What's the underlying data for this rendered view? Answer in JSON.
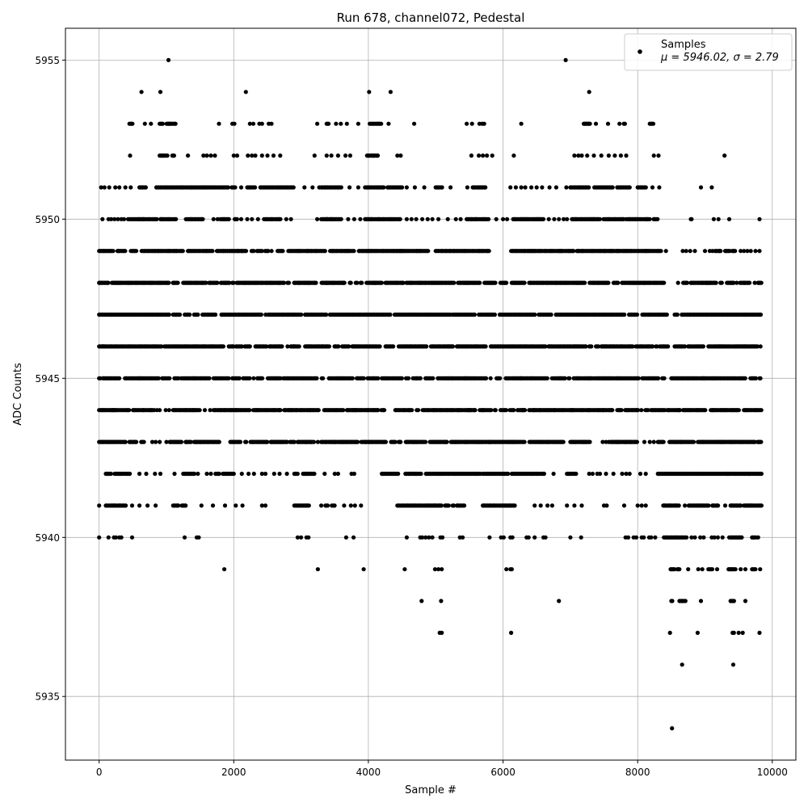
{
  "chart_data": {
    "type": "scatter",
    "title": "Run 678, channel072, Pedestal",
    "xlabel": "Sample #",
    "ylabel": "ADC Counts",
    "xlim": [
      -500,
      10350
    ],
    "ylim": [
      5933,
      5956
    ],
    "x_ticks": [
      0,
      2000,
      4000,
      6000,
      8000,
      10000
    ],
    "y_ticks": [
      5935,
      5940,
      5945,
      5950,
      5955
    ],
    "grid": true,
    "legend": {
      "placement": "top-right",
      "entries": [
        {
          "label": "Samples",
          "stats": "μ = 5946.02, σ = 2.79",
          "color": "#000000"
        }
      ]
    },
    "series": [
      {
        "name": "Samples",
        "color": "#000000",
        "x_range": [
          0,
          9840
        ],
        "levels": [
          {
            "y": 5934,
            "ranges": [],
            "points": [
              8510
            ]
          },
          {
            "y": 5936,
            "ranges": [],
            "points": [
              8660,
              9420
            ]
          },
          {
            "y": 5937,
            "ranges": [],
            "points": [
              5060,
              5090,
              6120,
              8480,
              8890,
              9410,
              9430,
              9500,
              9560,
              9810
            ]
          },
          {
            "y": 5938,
            "ranges": [
              [
                8500,
                8530
              ],
              [
                8620,
                8720
              ],
              [
                9380,
                9450
              ]
            ],
            "points": [
              4790,
              5080,
              6830,
              8940,
              9600
            ]
          },
          {
            "y": 5939,
            "ranges": [
              [
                8490,
                8640
              ],
              [
                9050,
                9120
              ],
              [
                9350,
                9460
              ],
              [
                9700,
                9760
              ]
            ],
            "points": [
              1860,
              3250,
              3930,
              4540,
              4990,
              5040,
              5090,
              6050,
              6110,
              6130,
              8750,
              8900,
              8960,
              9180,
              9530,
              9600,
              9820
            ]
          },
          {
            "y": 5940,
            "ranges": [
              [
                8390,
                8730
              ],
              [
                9360,
                9590
              ],
              [
                9700,
                9760
              ]
            ],
            "points": [
              0,
              140,
              220,
              250,
              300,
              330,
              490,
              1270,
              1450,
              1480,
              2950,
              3000,
              3080,
              3110,
              3670,
              3780,
              4570,
              4770,
              4800,
              4850,
              4900,
              4950,
              5070,
              5100,
              5360,
              5400,
              5800,
              5970,
              6010,
              6110,
              6140,
              6350,
              6380,
              6470,
              6600,
              6630,
              7000,
              7160,
              7820,
              7860,
              7940,
              7980,
              8060,
              8090,
              8170,
              8200,
              8260,
              8800,
              8850,
              8930,
              8980,
              9100,
              9140,
              9190,
              9260,
              9790
            ]
          },
          {
            "y": 5941,
            "ranges": [
              [
                100,
                400
              ],
              [
                1100,
                1300
              ],
              [
                2900,
                3120
              ],
              [
                3300,
                3500
              ],
              [
                4430,
                5100
              ],
              [
                5140,
                5430
              ],
              [
                5700,
                6190
              ],
              [
                8380,
                9200
              ],
              [
                9380,
                9840
              ]
            ],
            "points": [
              0,
              490,
              600,
              720,
              840,
              1520,
              1690,
              1870,
              2030,
              2130,
              2420,
              2470,
              3640,
              3740,
              3800,
              3890,
              6470,
              6560,
              6660,
              6730,
              6950,
              7060,
              7170,
              7500,
              7540,
              7800,
              8000,
              8060,
              8120,
              9300
            ]
          },
          {
            "y": 5942,
            "ranges": [
              [
                100,
                460
              ],
              [
                1250,
                1470
              ],
              [
                1730,
                2000
              ],
              [
                2900,
                3200
              ],
              [
                4200,
                4450
              ],
              [
                4550,
                5680
              ],
              [
                5700,
                6080
              ],
              [
                6130,
                6620
              ],
              [
                6950,
                7090
              ],
              [
                8300,
                9840
              ]
            ],
            "points": [
              600,
              700,
              830,
              910,
              1120,
              1600,
              1660,
              2120,
              2220,
              2300,
              2420,
              2470,
              2600,
              2680,
              2790,
              3350,
              3500,
              3550,
              3750,
              3790,
              6750,
              7280,
              7330,
              7400,
              7440,
              7530,
              7640,
              7770,
              7830,
              7880,
              8040,
              8120
            ]
          },
          {
            "y": 5943,
            "ranges": [
              [
                0,
                400
              ],
              [
                450,
                680
              ],
              [
                1050,
                1800
              ],
              [
                1950,
                2200
              ],
              [
                2250,
                2500
              ],
              [
                2550,
                2900
              ],
              [
                2950,
                3200
              ],
              [
                3300,
                4400
              ],
              [
                4450,
                5800
              ],
              [
                5800,
                6100
              ],
              [
                6100,
                6900
              ],
              [
                7000,
                7300
              ],
              [
                7600,
                8000
              ],
              [
                8300,
                9840
              ]
            ],
            "points": [
              790,
              840,
              900,
              1000,
              2900,
              3250,
              7480,
              7530,
              7570,
              8100,
              8180,
              8240
            ]
          },
          {
            "y": 5944,
            "ranges": [
              [
                0,
                800
              ],
              [
                1100,
                1500
              ],
              [
                1700,
                2700
              ],
              [
                2750,
                4300
              ],
              [
                4400,
                9840
              ]
            ],
            "points": [
              820,
              860,
              900,
              990,
              1040,
              1570,
              1650
            ]
          },
          {
            "y": 5945,
            "ranges": [
              [
                0,
                2300
              ],
              [
                2350,
                4150
              ],
              [
                4200,
                7000
              ],
              [
                7050,
                8400
              ],
              [
                8500,
                9840
              ]
            ],
            "points": []
          },
          {
            "y": 5946,
            "ranges": [
              [
                0,
                8450
              ],
              [
                8550,
                9840
              ]
            ],
            "points": []
          },
          {
            "y": 5947,
            "ranges": [
              [
                0,
                1050
              ],
              [
                1100,
                8450
              ],
              [
                8550,
                9840
              ]
            ],
            "points": []
          },
          {
            "y": 5948,
            "ranges": [
              [
                0,
                1200
              ],
              [
                1250,
                6080
              ],
              [
                6130,
                8400
              ],
              [
                8600,
                9840
              ]
            ],
            "points": []
          },
          {
            "y": 5949,
            "ranges": [
              [
                0,
                1700
              ],
              [
                1750,
                4900
              ],
              [
                5000,
                5800
              ],
              [
                6120,
                8350
              ],
              [
                9150,
                9450
              ]
            ],
            "points": [
              8420,
              8670,
              8720,
              8780,
              8850,
              9000,
              9070,
              9110,
              9530,
              9580,
              9630,
              9680,
              9750,
              9810
            ]
          },
          {
            "y": 5950,
            "ranges": [
              [
                430,
                1150
              ],
              [
                1290,
                1550
              ],
              [
                1800,
                2050
              ],
              [
                2450,
                2700
              ],
              [
                3300,
                3600
              ],
              [
                3950,
                4480
              ],
              [
                5460,
                5800
              ],
              [
                6150,
                6600
              ],
              [
                6950,
                7800
              ],
              [
                7830,
                8300
              ]
            ],
            "points": [
              50,
              140,
              180,
              230,
              280,
              330,
              370,
              1700,
              1760,
              2110,
              2200,
              2270,
              2360,
              2780,
              2850,
              3240,
              3700,
              3790,
              3880,
              4570,
              4640,
              4710,
              4800,
              4880,
              4950,
              5040,
              5180,
              5300,
              5370,
              5900,
              6000,
              6060,
              6680,
              6760,
              6830,
              6900,
              8790,
              8800,
              9130,
              9200,
              9360,
              9810
            ]
          },
          {
            "y": 5951,
            "ranges": [
              [
                600,
                700
              ],
              [
                850,
                2000
              ],
              [
                2200,
                2900
              ],
              [
                3300,
                3600
              ],
              [
                3950,
                4500
              ],
              [
                5000,
                5100
              ],
              [
                5550,
                5750
              ],
              [
                7000,
                7900
              ],
              [
                8000,
                8150
              ]
            ],
            "points": [
              30,
              80,
              150,
              240,
              300,
              390,
              470,
              2020,
              2110,
              3050,
              3170,
              3270,
              3720,
              3850,
              4570,
              4690,
              4830,
              5220,
              5470,
              6110,
              6190,
              6270,
              6330,
              6420,
              6500,
              6580,
              6690,
              6790,
              6940,
              8220,
              8320,
              8940,
              9100
            ]
          },
          {
            "y": 5952,
            "ranges": [
              [
                900,
                1150
              ],
              [
                3980,
                4150
              ]
            ],
            "points": [
              460,
              1320,
              1550,
              1600,
              1660,
              1720,
              2000,
              2050,
              2210,
              2270,
              2320,
              2420,
              2500,
              2590,
              2690,
              3200,
              3380,
              3450,
              3550,
              3660,
              3730,
              4430,
              4480,
              5530,
              5640,
              5700,
              5760,
              5840,
              6160,
              7060,
              7120,
              7170,
              7250,
              7350,
              7460,
              7570,
              7660,
              7750,
              7830,
              8240,
              8310,
              9290
            ]
          },
          {
            "y": 5953,
            "ranges": [
              [
                450,
                500
              ],
              [
                900,
                1150
              ],
              [
                3380,
                3420
              ],
              [
                4020,
                4200
              ],
              [
                7200,
                7300
              ],
              [
                7730,
                7830
              ],
              [
                8180,
                8250
              ]
            ],
            "points": [
              680,
              770,
              1780,
              1980,
              2010,
              2240,
              2290,
              2380,
              2420,
              2520,
              2560,
              3240,
              3520,
              3590,
              3680,
              3850,
              4300,
              4680,
              5460,
              5540,
              5650,
              5690,
              5720,
              6270,
              7380,
              7560
            ]
          },
          {
            "y": 5954,
            "ranges": [],
            "points": [
              630,
              910,
              2180,
              4010,
              4330,
              7280
            ]
          },
          {
            "y": 5955,
            "ranges": [],
            "points": [
              1030,
              6930
            ]
          }
        ]
      }
    ]
  }
}
